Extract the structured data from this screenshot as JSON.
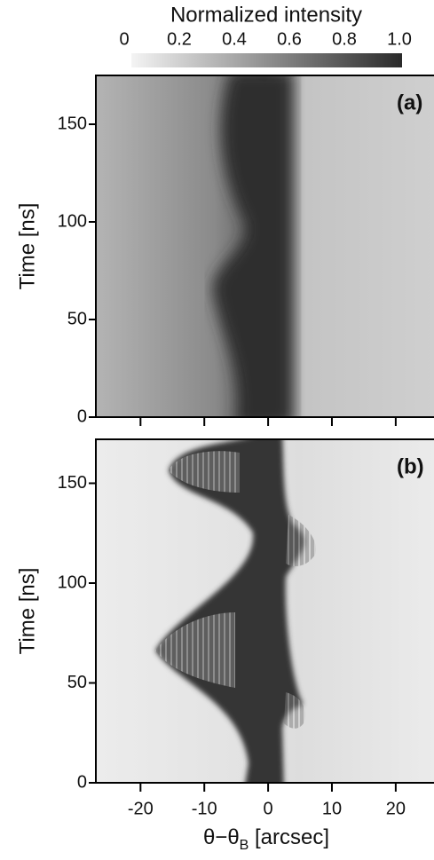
{
  "chart_data": [
    {
      "type": "heatmap",
      "panel_label": "(a)",
      "ylabel": "Time [ns]",
      "xlim": [
        -27,
        26
      ],
      "xticks": [
        -20,
        -10,
        0,
        10,
        20
      ],
      "ylim": [
        0,
        175
      ],
      "yticks": [
        0,
        50,
        100,
        150
      ],
      "colorbar": {
        "title": "Normalized intensity",
        "lim": [
          0,
          1
        ],
        "ticks": [
          0,
          0.2,
          0.4,
          0.6,
          0.8,
          {
            "value": 1,
            "label": "1.0"
          }
        ]
      }
    },
    {
      "type": "heatmap",
      "panel_label": "(b)",
      "ylabel": "Time [ns]",
      "xlim": [
        -27,
        26
      ],
      "xticks": [
        -20,
        -10,
        0,
        10,
        20
      ],
      "ylim": [
        0,
        172
      ],
      "yticks": [
        0,
        50,
        100,
        150
      ],
      "xlabel": {
        "main": "θ−θ",
        "sub": "B",
        "rest": " [arcsec]"
      }
    }
  ]
}
